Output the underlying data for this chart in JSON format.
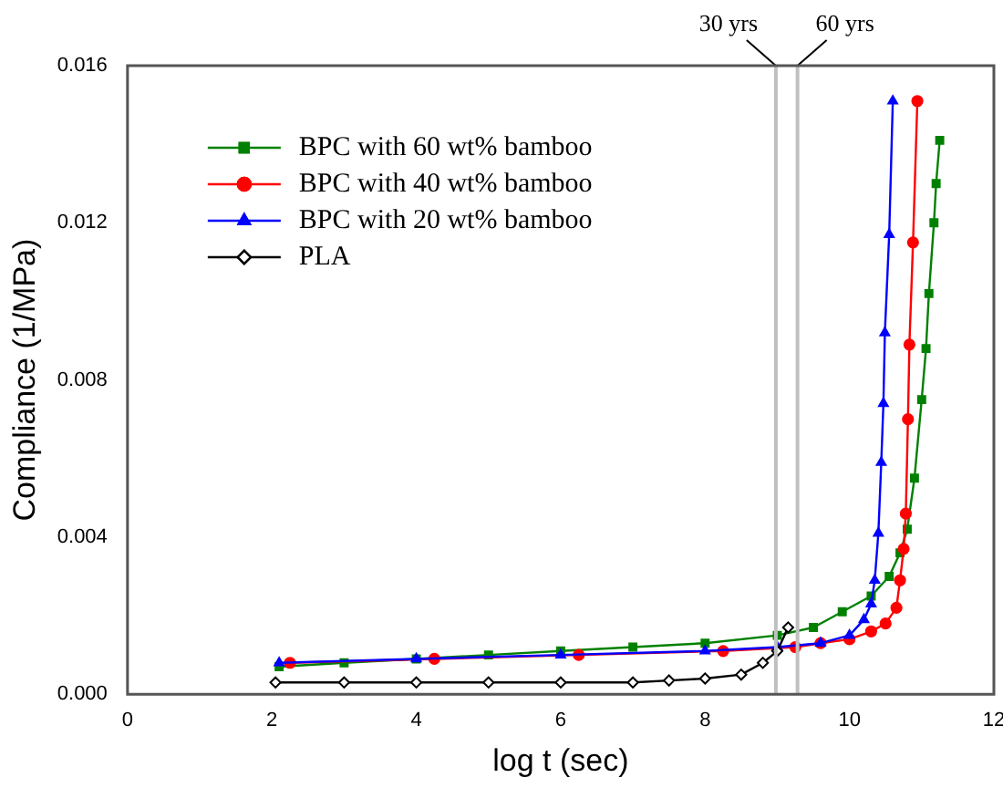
{
  "chart_data": {
    "type": "line",
    "xlabel": "log t (sec)",
    "ylabel": "Compliance (1/MPa)",
    "xlim": [
      0,
      12
    ],
    "xticks": [
      0,
      2,
      4,
      6,
      8,
      10,
      12
    ],
    "ylim": [
      0,
      0.016
    ],
    "yticks": [
      {
        "value": 0,
        "label": "0.000"
      },
      {
        "value": 0.004,
        "label": "0.004"
      },
      {
        "value": 0.008,
        "label": "0.008"
      },
      {
        "value": 0.012,
        "label": "0.012"
      },
      {
        "value": 0.016,
        "label": "0.016"
      }
    ],
    "grid": false,
    "legend": "top left",
    "ref_lines": [
      {
        "axis": "x",
        "value": 8.98,
        "label": "30 yrs",
        "color": "#c0c0c0"
      },
      {
        "axis": "x",
        "value": 9.28,
        "label": "60 yrs",
        "color": "#c0c0c0"
      }
    ],
    "series": [
      {
        "name": "BPC with 60 wt% bamboo",
        "color": "#008000",
        "marker": "square",
        "x": [
          2.1,
          3,
          4,
          5,
          6,
          7,
          8,
          9,
          9.5,
          9.9,
          10.3,
          10.55,
          10.7,
          10.8,
          10.9,
          11.0,
          11.06,
          11.1,
          11.17,
          11.2,
          11.25
        ],
        "values": [
          0.0007,
          0.0008,
          0.0009,
          0.001,
          0.0011,
          0.0012,
          0.0013,
          0.0015,
          0.0017,
          0.0021,
          0.0025,
          0.003,
          0.0036,
          0.0042,
          0.0055,
          0.0075,
          0.0088,
          0.0102,
          0.012,
          0.013,
          0.0141
        ]
      },
      {
        "name": "BPC with 40 wt% bamboo",
        "color": "#ff0000",
        "marker": "circle",
        "x": [
          2.25,
          4.25,
          6.25,
          8.25,
          9.25,
          9.6,
          10.0,
          10.3,
          10.5,
          10.65,
          10.7,
          10.75,
          10.78,
          10.81,
          10.83,
          10.88,
          10.94
        ],
        "values": [
          0.0008,
          0.0009,
          0.001,
          0.0011,
          0.0012,
          0.0013,
          0.0014,
          0.0016,
          0.0018,
          0.0022,
          0.0029,
          0.0037,
          0.0046,
          0.007,
          0.0089,
          0.0115,
          0.0151
        ]
      },
      {
        "name": "BPC with 20 wt% bamboo",
        "color": "#0000ff",
        "marker": "triangle",
        "x": [
          2.1,
          4,
          6,
          8,
          9,
          9.6,
          10.0,
          10.2,
          10.3,
          10.35,
          10.4,
          10.44,
          10.47,
          10.49,
          10.55,
          10.6
        ],
        "values": [
          0.0008,
          0.0009,
          0.001,
          0.0011,
          0.0012,
          0.0013,
          0.0015,
          0.0019,
          0.0023,
          0.0029,
          0.0041,
          0.0059,
          0.0074,
          0.0092,
          0.0117,
          0.0151
        ]
      },
      {
        "name": "PLA",
        "color": "#000000",
        "marker": "diamond",
        "x": [
          2.05,
          3,
          4,
          5,
          6,
          7,
          7.5,
          8,
          8.5,
          8.8,
          9.0,
          9.15
        ],
        "values": [
          0.0003,
          0.0003,
          0.0003,
          0.0003,
          0.0003,
          0.0003,
          0.00035,
          0.0004,
          0.0005,
          0.0008,
          0.0011,
          0.0017
        ]
      }
    ]
  }
}
